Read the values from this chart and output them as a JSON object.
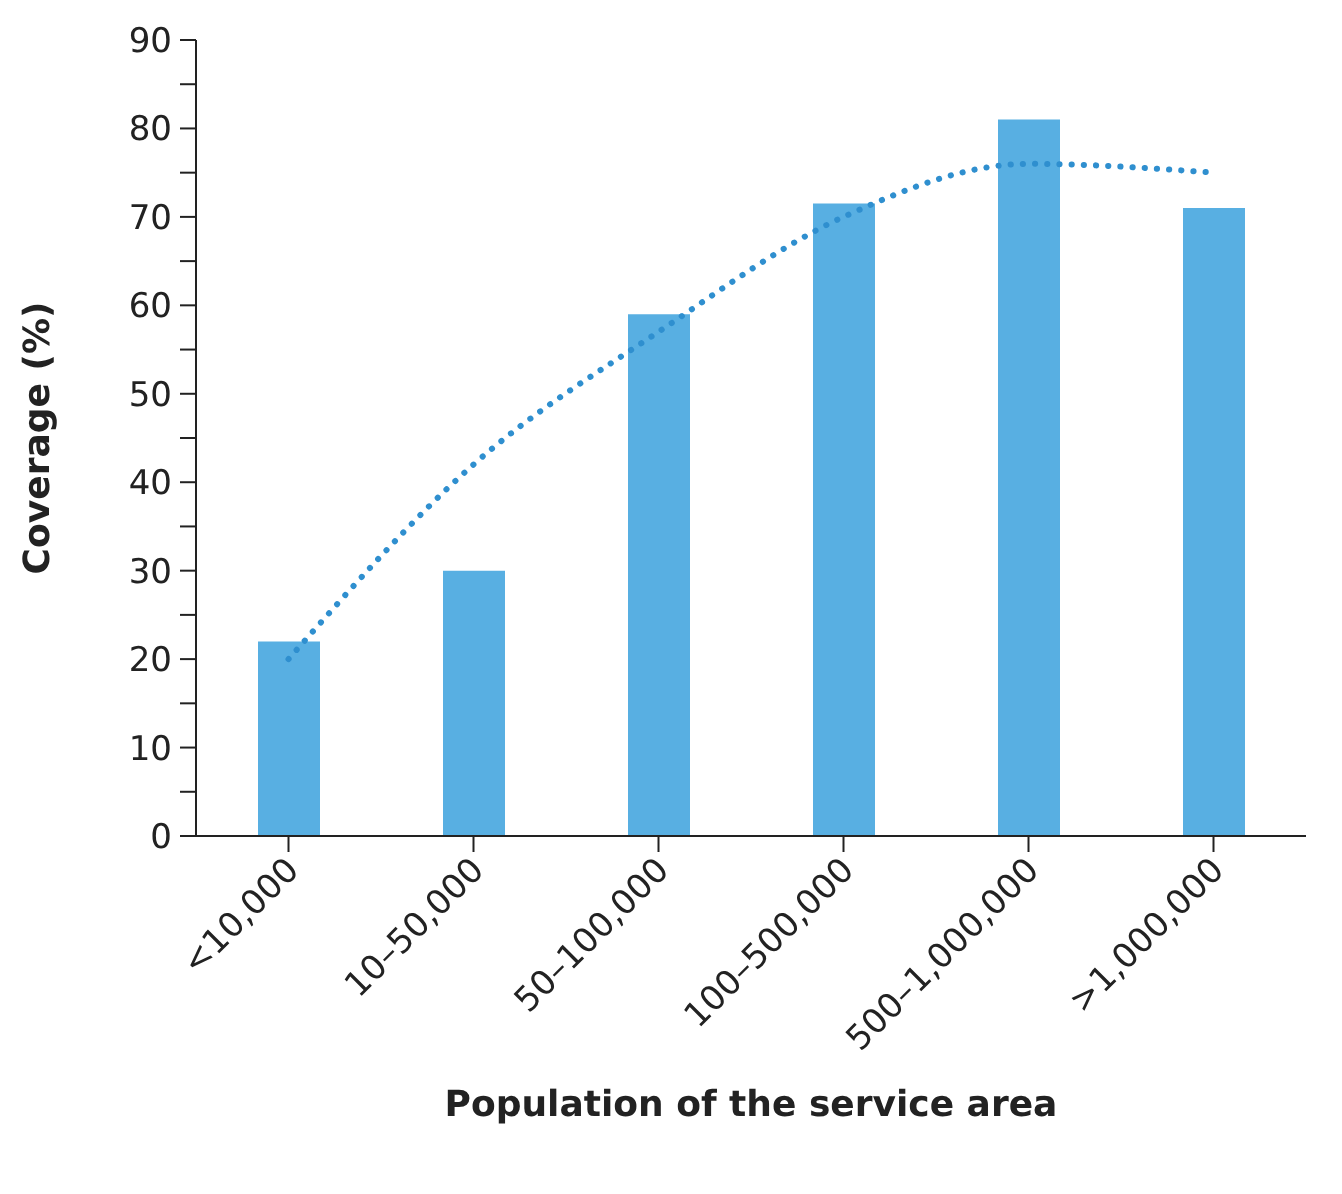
{
  "chart_data": {
    "type": "bar",
    "xlabel": "Population of the service area",
    "ylabel": "Coverage (%)",
    "categories": [
      "<10,000",
      "10–50,000",
      "50–100,000",
      "100–500,000",
      "500–1,000,000",
      ">1,000,000"
    ],
    "series": [
      {
        "color": "#58afe2",
        "values": [
          22,
          30,
          59,
          71.5,
          81,
          71
        ]
      },
      {
        "type": "line",
        "color": "#2f8fcf",
        "line_style": "dotted",
        "marker": "none",
        "values": [
          20,
          42,
          57,
          70,
          76,
          75
        ]
      }
    ],
    "ylim": [
      0,
      90
    ],
    "yticks": [
      0,
      {
        "value": 5,
        "label": null
      },
      10,
      {
        "value": 15,
        "label": null
      },
      20,
      {
        "value": 25,
        "label": null
      },
      30,
      {
        "value": 35,
        "label": null
      },
      40,
      {
        "value": 45,
        "label": null
      },
      50,
      {
        "value": 55,
        "label": null
      },
      60,
      {
        "value": 65,
        "label": null
      },
      70,
      {
        "value": 75,
        "label": null
      },
      80,
      {
        "value": 85,
        "label": null
      },
      90
    ],
    "grid": false,
    "legend": false
  }
}
